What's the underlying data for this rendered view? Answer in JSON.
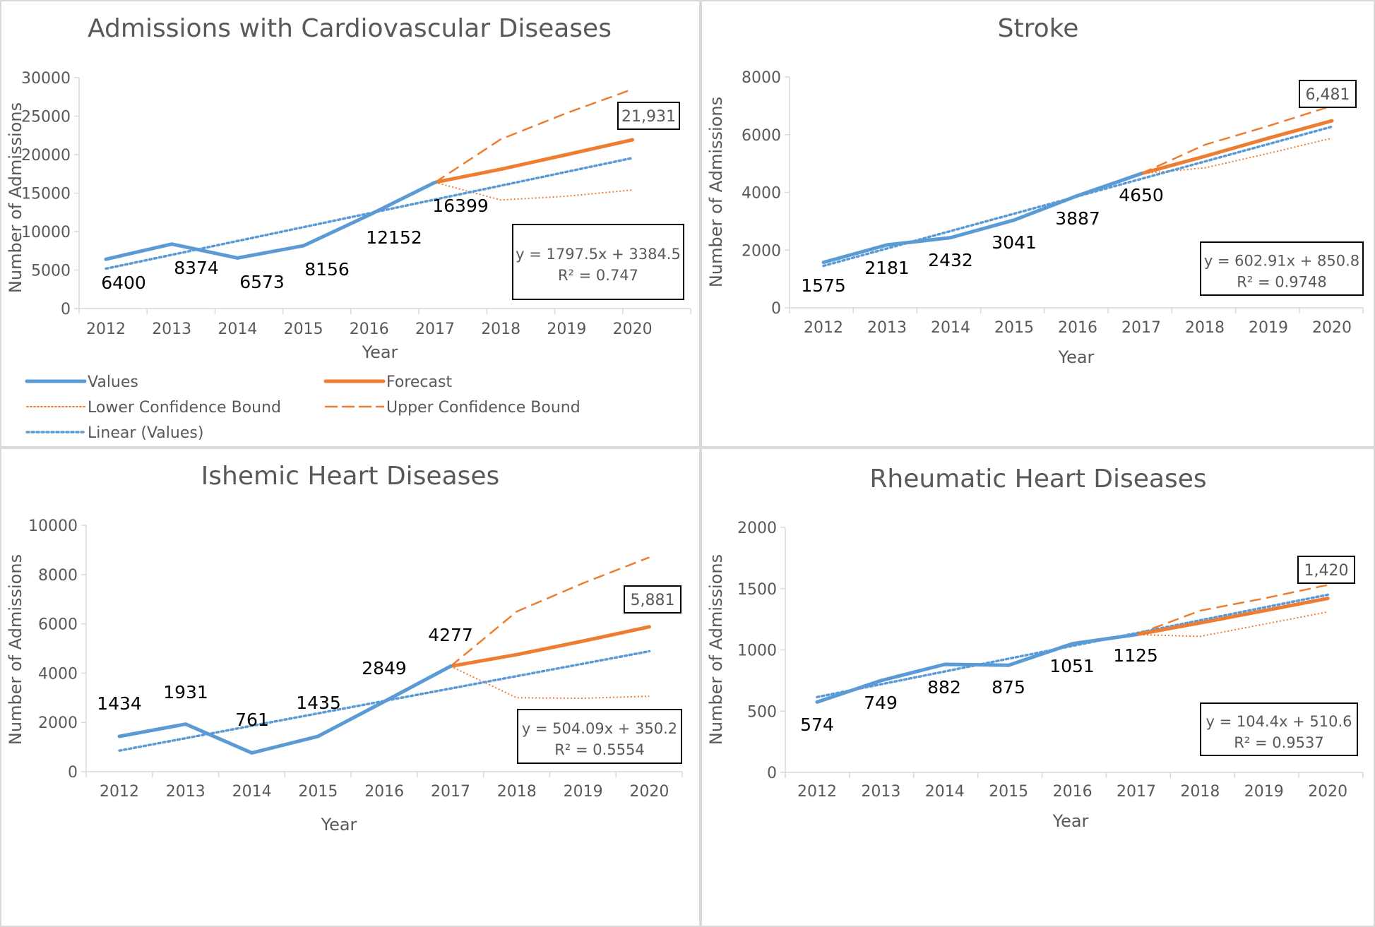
{
  "colors": {
    "values": "#5b9bd5",
    "forecast": "#ed7d31",
    "axis": "#d9d9d9",
    "text": "#595959",
    "panel_border": "#d9d9d9"
  },
  "legend": {
    "values": "Values",
    "forecast": "Forecast",
    "lower": "Lower Confidence Bound",
    "upper": "Upper Confidence Bound",
    "linear": "Linear (Values)"
  },
  "chart_data": [
    {
      "type": "line",
      "title": "Admissions with Cardiovascular Diseases",
      "xlabel": "Year",
      "ylabel": "Number of Admissions",
      "ylim": [
        0,
        30000
      ],
      "yticks": [
        0,
        5000,
        10000,
        15000,
        20000,
        25000,
        30000
      ],
      "categories": [
        "2012",
        "2013",
        "2014",
        "2015",
        "2016",
        "2017",
        "2018",
        "2019",
        "2020"
      ],
      "series": [
        {
          "name": "Values",
          "values": [
            6400,
            8374,
            6573,
            8156,
            12152,
            16399,
            null,
            null,
            null
          ]
        },
        {
          "name": "Forecast",
          "values": [
            null,
            null,
            null,
            null,
            null,
            16399,
            18100,
            20000,
            21931
          ]
        },
        {
          "name": "Lower Confidence Bound",
          "values": [
            null,
            null,
            null,
            null,
            null,
            16399,
            14100,
            14600,
            15400
          ]
        },
        {
          "name": "Upper Confidence Bound",
          "values": [
            null,
            null,
            null,
            null,
            null,
            16399,
            22000,
            25400,
            28500
          ]
        }
      ],
      "trendline": {
        "name": "Linear (Values)",
        "slope": 1797.5,
        "intercept": 3384.5
      },
      "data_labels": [
        "6400",
        "8374",
        "6573",
        "8156",
        "12152",
        "16399"
      ],
      "equation": "y = 1797.5x + 3384.5",
      "r2": "R² = 0.747",
      "forecast_label": "21,931",
      "legend_position": "bottom"
    },
    {
      "type": "line",
      "title": "Stroke",
      "xlabel": "Year",
      "ylabel": "Number of Admissions",
      "ylim": [
        0,
        8000
      ],
      "yticks": [
        0,
        2000,
        4000,
        6000,
        8000
      ],
      "categories": [
        "2012",
        "2013",
        "2014",
        "2015",
        "2016",
        "2017",
        "2018",
        "2019",
        "2020"
      ],
      "series": [
        {
          "name": "Values",
          "values": [
            1575,
            2181,
            2432,
            3041,
            3887,
            4650,
            null,
            null,
            null
          ]
        },
        {
          "name": "Forecast",
          "values": [
            null,
            null,
            null,
            null,
            null,
            4650,
            5250,
            5880,
            6481
          ]
        },
        {
          "name": "Lower Confidence Bound",
          "values": [
            null,
            null,
            null,
            null,
            null,
            4650,
            4850,
            5350,
            5880
          ]
        },
        {
          "name": "Upper Confidence Bound",
          "values": [
            null,
            null,
            null,
            null,
            null,
            4650,
            5650,
            6300,
            7000
          ]
        }
      ],
      "trendline": {
        "name": "Linear (Values)",
        "slope": 602.91,
        "intercept": 850.8
      },
      "data_labels": [
        "1575",
        "2181",
        "2432",
        "3041",
        "3887",
        "4650"
      ],
      "equation": "y = 602.91x + 850.8",
      "r2": "R² = 0.9748",
      "forecast_label": "6,481"
    },
    {
      "type": "line",
      "title": "Ishemic Heart Diseases",
      "xlabel": "Year",
      "ylabel": "Number of Admissions",
      "ylim": [
        0,
        10000
      ],
      "yticks": [
        0,
        2000,
        4000,
        6000,
        8000,
        10000
      ],
      "categories": [
        "2012",
        "2013",
        "2014",
        "2015",
        "2016",
        "2017",
        "2018",
        "2019",
        "2020"
      ],
      "series": [
        {
          "name": "Values",
          "values": [
            1434,
            1931,
            761,
            1435,
            2849,
            4277,
            null,
            null,
            null
          ]
        },
        {
          "name": "Forecast",
          "values": [
            null,
            null,
            null,
            null,
            null,
            4277,
            4750,
            5300,
            5881
          ]
        },
        {
          "name": "Lower Confidence Bound",
          "values": [
            null,
            null,
            null,
            null,
            null,
            4277,
            3000,
            2980,
            3060
          ]
        },
        {
          "name": "Upper Confidence Bound",
          "values": [
            null,
            null,
            null,
            null,
            null,
            4277,
            6500,
            7650,
            8700
          ]
        }
      ],
      "trendline": {
        "name": "Linear (Values)",
        "slope": 504.09,
        "intercept": 350.2
      },
      "data_labels": [
        "1434",
        "1931",
        "761",
        "1435",
        "2849",
        "4277"
      ],
      "equation": "y = 504.09x + 350.2",
      "r2": "R² = 0.5554",
      "forecast_label": "5,881"
    },
    {
      "type": "line",
      "title": "Rheumatic Heart Diseases",
      "xlabel": "Year",
      "ylabel": "Number of Admissions",
      "ylim": [
        0,
        2000
      ],
      "yticks": [
        0,
        500,
        1000,
        1500,
        2000
      ],
      "categories": [
        "2012",
        "2013",
        "2014",
        "2015",
        "2016",
        "2017",
        "2018",
        "2019",
        "2020"
      ],
      "series": [
        {
          "name": "Values",
          "values": [
            574,
            749,
            882,
            875,
            1051,
            1125,
            null,
            null,
            null
          ]
        },
        {
          "name": "Forecast",
          "values": [
            null,
            null,
            null,
            null,
            null,
            1125,
            1220,
            1320,
            1420
          ]
        },
        {
          "name": "Lower Confidence Bound",
          "values": [
            null,
            null,
            null,
            null,
            null,
            1125,
            1110,
            1210,
            1310
          ]
        },
        {
          "name": "Upper Confidence Bound",
          "values": [
            null,
            null,
            null,
            null,
            null,
            1125,
            1320,
            1420,
            1530
          ]
        }
      ],
      "trendline": {
        "name": "Linear (Values)",
        "slope": 104.4,
        "intercept": 510.6
      },
      "data_labels": [
        "574",
        "749",
        "882",
        "875",
        "1051",
        "1125"
      ],
      "equation": "y = 104.4x + 510.6",
      "r2": "R² = 0.9537",
      "forecast_label": "1,420"
    }
  ]
}
